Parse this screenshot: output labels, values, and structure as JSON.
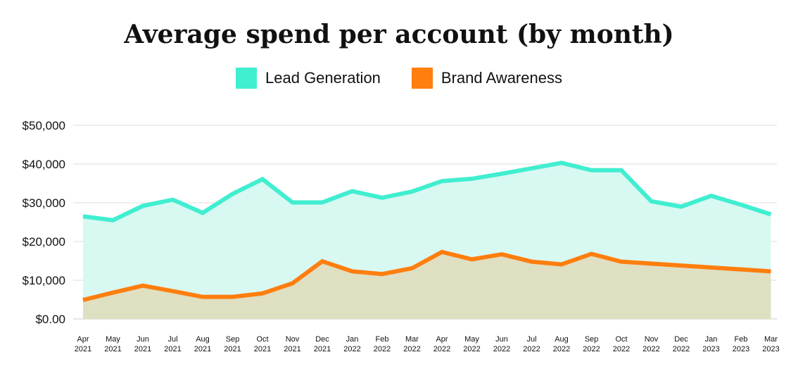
{
  "chart_data": {
    "type": "area",
    "title": "Average spend per account (by month)",
    "xlabel": "",
    "ylabel": "",
    "ylim": [
      0,
      50000
    ],
    "yticks": [
      {
        "value": 0,
        "label": "$0.00"
      },
      {
        "value": 10000,
        "label": "$10,000"
      },
      {
        "value": 20000,
        "label": "$20,000"
      },
      {
        "value": 30000,
        "label": "$30,000"
      },
      {
        "value": 40000,
        "label": "$40,000"
      },
      {
        "value": 50000,
        "label": "$50,000"
      }
    ],
    "categories": [
      [
        "Apr",
        "2021"
      ],
      [
        "May",
        "2021"
      ],
      [
        "Jun",
        "2021"
      ],
      [
        "Jul",
        "2021"
      ],
      [
        "Aug",
        "2021"
      ],
      [
        "Sep",
        "2021"
      ],
      [
        "Oct",
        "2021"
      ],
      [
        "Nov",
        "2021"
      ],
      [
        "Dec",
        "2021"
      ],
      [
        "Jan",
        "2022"
      ],
      [
        "Feb",
        "2022"
      ],
      [
        "Mar",
        "2022"
      ],
      [
        "Apr",
        "2022"
      ],
      [
        "May",
        "2022"
      ],
      [
        "Jun",
        "2022"
      ],
      [
        "Jul",
        "2022"
      ],
      [
        "Aug",
        "2022"
      ],
      [
        "Sep",
        "2022"
      ],
      [
        "Oct",
        "2022"
      ],
      [
        "Nov",
        "2022"
      ],
      [
        "Dec",
        "2022"
      ],
      [
        "Jan",
        "2023"
      ],
      [
        "Feb",
        "2023"
      ],
      [
        "Mar",
        "2023"
      ]
    ],
    "grid": true,
    "legend_position": "top-center",
    "series": [
      {
        "name": "Lead Generation",
        "color": "#40eed0",
        "fill": "#d8f8f2",
        "values": [
          26500,
          25500,
          29200,
          30800,
          27400,
          32300,
          36100,
          30100,
          30100,
          33000,
          31300,
          32900,
          35600,
          36200,
          37500,
          38900,
          40300,
          38400,
          38400,
          30400,
          29000,
          31800,
          29500,
          27000
        ]
      },
      {
        "name": "Brand Awareness",
        "color": "#ff7e0e",
        "fill": "#dfdfc2",
        "values": [
          4900,
          6800,
          8600,
          7200,
          5700,
          5700,
          6600,
          9200,
          14900,
          12300,
          11600,
          13100,
          17300,
          15400,
          16700,
          14800,
          14100,
          16800,
          14800,
          14300,
          13800,
          13300,
          12800,
          12300
        ]
      }
    ]
  }
}
